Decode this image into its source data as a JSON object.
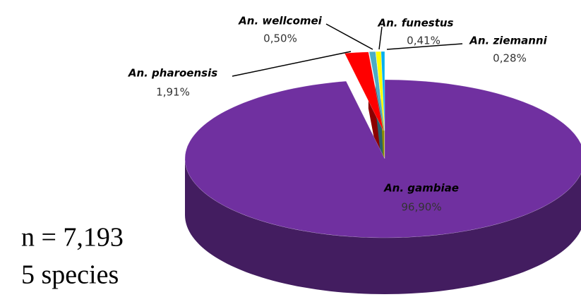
{
  "chart_data": {
    "type": "pie",
    "categories": [
      "An. gambiae",
      "An. pharoensis",
      "An. wellcomei",
      "An. funestus",
      "An. ziemanni"
    ],
    "values": [
      96.9,
      1.91,
      0.5,
      0.41,
      0.28
    ],
    "value_labels": [
      "96,90%",
      "1,91%",
      "0,50%",
      "0,41%",
      "0,28%"
    ],
    "colors": [
      "#7030a0",
      "#ff0000",
      "#4bacc6",
      "#ffff00",
      "#00b0f0"
    ],
    "annotations": [
      "n = 7,193",
      "5 species"
    ]
  }
}
